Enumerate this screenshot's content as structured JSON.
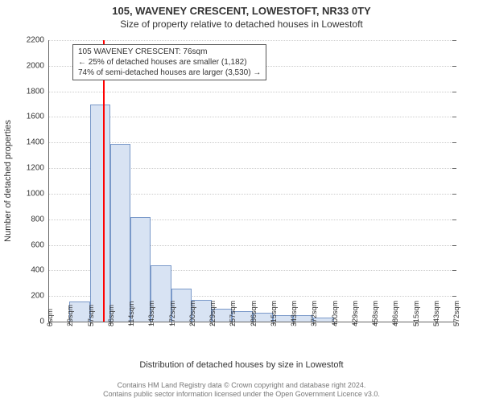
{
  "title": "105, WAVENEY CRESCENT, LOWESTOFT, NR33 0TY",
  "subtitle": "Size of property relative to detached houses in Lowestoft",
  "ylabel": "Number of detached properties",
  "xlabel": "Distribution of detached houses by size in Lowestoft",
  "credit_line1": "Contains HM Land Registry data © Crown copyright and database right 2024.",
  "credit_line2": "Contains public sector information licensed under the Open Government Licence v3.0.",
  "legend": {
    "line1": "105 WAVENEY CRESCENT: 76sqm",
    "line2": "← 25% of detached houses are smaller (1,182)",
    "line3": "74% of semi-detached houses are larger (3,530) →"
  },
  "chart": {
    "type": "histogram",
    "ylim": [
      0,
      2200
    ],
    "yticks": [
      0,
      200,
      400,
      600,
      800,
      1000,
      1200,
      1400,
      1600,
      1800,
      2000,
      2200
    ],
    "xtick_labels": [
      "0sqm",
      "29sqm",
      "57sqm",
      "86sqm",
      "114sqm",
      "143sqm",
      "172sqm",
      "200sqm",
      "229sqm",
      "257sqm",
      "286sqm",
      "315sqm",
      "343sqm",
      "372sqm",
      "400sqm",
      "429sqm",
      "458sqm",
      "486sqm",
      "515sqm",
      "543sqm",
      "572sqm"
    ],
    "num_bins": 20,
    "values": [
      0,
      160,
      1700,
      1390,
      820,
      440,
      260,
      170,
      100,
      80,
      70,
      50,
      50,
      30,
      0,
      0,
      0,
      0,
      0,
      0
    ],
    "bar_fill": "#d8e3f3",
    "bar_stroke": "#7a99c9",
    "grid_color": "#cccccc",
    "background": "#ffffff",
    "marker": {
      "value_sqm": 76,
      "x_range_max": 572,
      "color": "#ff0000"
    }
  }
}
